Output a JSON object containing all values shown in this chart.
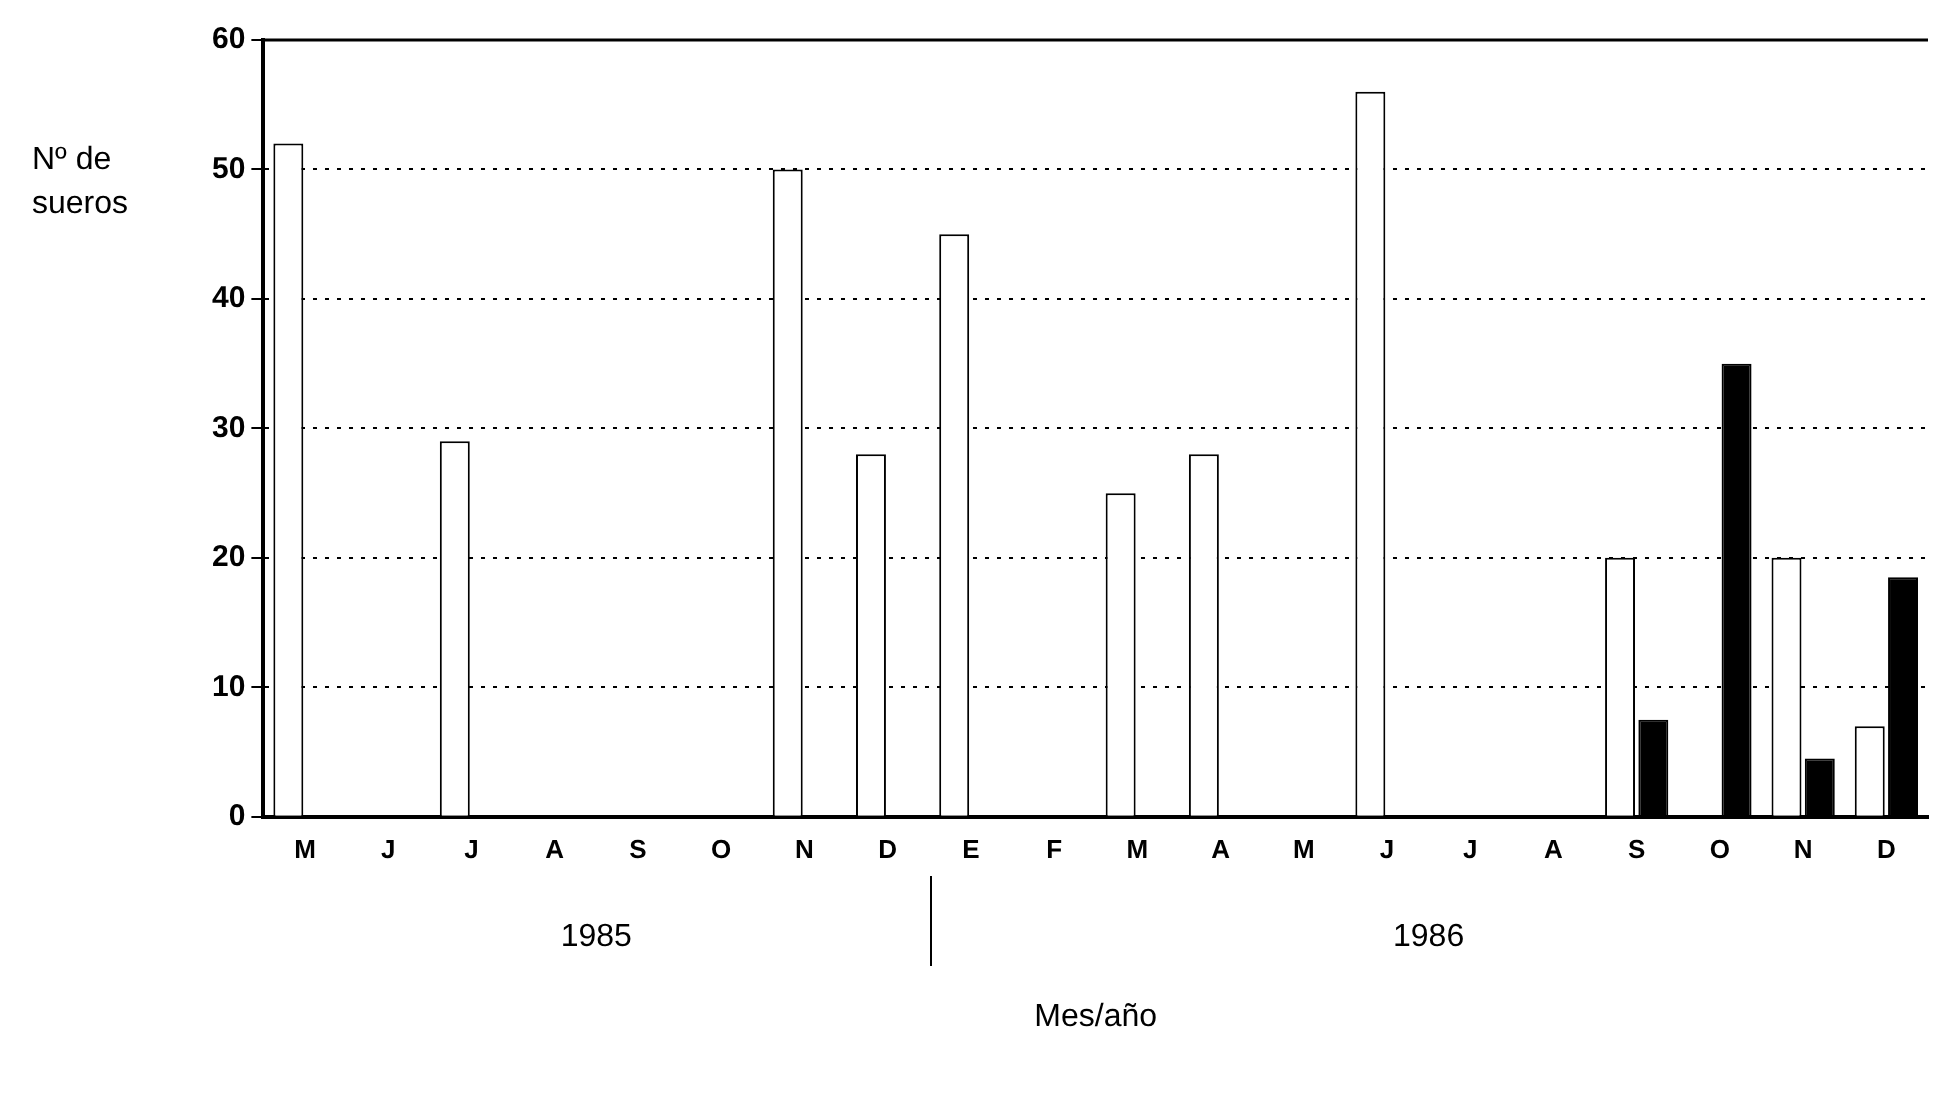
{
  "chart_data": {
    "type": "bar",
    "xlabel": "Mes/año",
    "ylabel": "Nº de sueros",
    "categories": [
      "M",
      "J",
      "J",
      "A",
      "S",
      "O",
      "N",
      "D",
      "E",
      "F",
      "M",
      "A",
      "M",
      "J",
      "J",
      "A",
      "S",
      "O",
      "N",
      "D"
    ],
    "series": [
      {
        "color": "#ffffff",
        "values": [
          52,
          0,
          29,
          0,
          0,
          0,
          50,
          28,
          45,
          0,
          25,
          28,
          0,
          56,
          0,
          0,
          20,
          0,
          20,
          7
        ]
      },
      {
        "color": "#000000",
        "values": [
          0,
          0,
          0,
          0,
          0,
          0,
          0,
          0,
          0,
          0,
          0,
          0,
          0,
          0,
          0,
          0,
          7.5,
          35,
          4.5,
          18.5
        ]
      }
    ],
    "ylim": [
      0,
      60
    ],
    "yticks": [
      0,
      10,
      20,
      30,
      40,
      50,
      60
    ],
    "grid": "y",
    "legend": false,
    "annotations": [
      "1985",
      "1986"
    ]
  }
}
